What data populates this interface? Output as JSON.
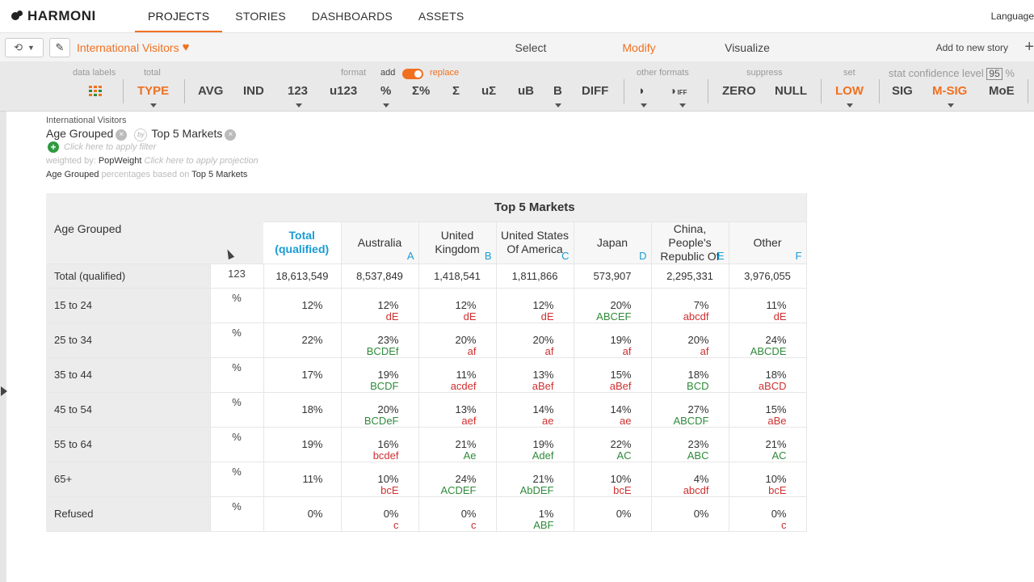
{
  "nav": {
    "brand": "HARMONI",
    "tabs": [
      "PROJECTS",
      "STORIES",
      "DASHBOARDS",
      "ASSETS"
    ],
    "active_tab": "PROJECTS",
    "language": "Language"
  },
  "subbar": {
    "story_title": "International Visitors",
    "modes": [
      "Select",
      "Modify",
      "Visualize"
    ],
    "active_mode": "Modify",
    "add_story": "Add to new story"
  },
  "toolbar": {
    "labels": {
      "data_labels": "data labels",
      "total": "total",
      "format": "format",
      "add": "add",
      "replace": "replace",
      "other_formats": "other formats",
      "suppress": "suppress",
      "set": "set",
      "stat_confidence": "stat confidence level",
      "confidence_value": "95",
      "percent_sign": "%"
    },
    "buttons": {
      "type": "TYPE",
      "avg": "AVG",
      "ind": "IND",
      "n123": "123",
      "u123": "u123",
      "pct": "%",
      "sigma_pct": "Σ%",
      "sigma": "Σ",
      "u_sigma": "uΣ",
      "ub": "uB",
      "b": "B",
      "diff": "DIFF",
      "diff_small": "IFF",
      "zero": "ZERO",
      "null": "NULL",
      "low": "LOW",
      "sig": "SIG",
      "msig": "M-SIG",
      "moe": "MoE"
    }
  },
  "meta": {
    "dataset": "International Visitors",
    "row_var": "Age Grouped",
    "by": "by",
    "col_var": "Top 5 Markets",
    "filter_hint": "Click here to apply filter",
    "weighted_by_label": "weighted by:",
    "weight": "PopWeight",
    "projection_hint": "Click here to apply projection",
    "pct_row": "Age Grouped",
    "pct_text": "percentages based on",
    "pct_col": "Top 5 Markets"
  },
  "table": {
    "banner": "Top 5 Markets",
    "row_var_label": "Age Grouped",
    "columns": [
      {
        "label": "Total (qualified)",
        "letter": ""
      },
      {
        "label": "Australia",
        "letter": "A"
      },
      {
        "label": "United Kingdom",
        "letter": "B"
      },
      {
        "label": "United States Of America",
        "letter": "C"
      },
      {
        "label": "Japan",
        "letter": "D"
      },
      {
        "label": "China, People's Republic Of",
        "letter": "E"
      },
      {
        "label": "Other",
        "letter": "F"
      }
    ],
    "rows": [
      {
        "label": "Total (qualified)",
        "stat": "123",
        "cells": [
          {
            "v": "18,613,549",
            "s": "",
            "t": ""
          },
          {
            "v": "8,537,849",
            "s": "",
            "t": ""
          },
          {
            "v": "1,418,541",
            "s": "",
            "t": ""
          },
          {
            "v": "1,811,866",
            "s": "",
            "t": ""
          },
          {
            "v": "573,907",
            "s": "",
            "t": ""
          },
          {
            "v": "2,295,331",
            "s": "",
            "t": ""
          },
          {
            "v": "3,976,055",
            "s": "",
            "t": ""
          }
        ]
      },
      {
        "label": "15 to 24",
        "stat": "%",
        "cells": [
          {
            "v": "12%",
            "s": "",
            "t": ""
          },
          {
            "v": "12%",
            "s": "dE",
            "t": "dn"
          },
          {
            "v": "12%",
            "s": "dE",
            "t": "dn"
          },
          {
            "v": "12%",
            "s": "dE",
            "t": "dn"
          },
          {
            "v": "20%",
            "s": "ABCEF",
            "t": "up"
          },
          {
            "v": "7%",
            "s": "abcdf",
            "t": "dn"
          },
          {
            "v": "11%",
            "s": "dE",
            "t": "dn"
          }
        ]
      },
      {
        "label": "25 to 34",
        "stat": "%",
        "cells": [
          {
            "v": "22%",
            "s": "",
            "t": ""
          },
          {
            "v": "23%",
            "s": "BCDEf",
            "t": "up"
          },
          {
            "v": "20%",
            "s": "af",
            "t": "dn"
          },
          {
            "v": "20%",
            "s": "af",
            "t": "dn"
          },
          {
            "v": "19%",
            "s": "af",
            "t": "dn"
          },
          {
            "v": "20%",
            "s": "af",
            "t": "dn"
          },
          {
            "v": "24%",
            "s": "ABCDE",
            "t": "up"
          }
        ]
      },
      {
        "label": "35 to 44",
        "stat": "%",
        "cells": [
          {
            "v": "17%",
            "s": "",
            "t": ""
          },
          {
            "v": "19%",
            "s": "BCDF",
            "t": "up"
          },
          {
            "v": "11%",
            "s": "acdef",
            "t": "dn"
          },
          {
            "v": "13%",
            "s": "aBef",
            "t": "dn"
          },
          {
            "v": "15%",
            "s": "aBef",
            "t": "dn"
          },
          {
            "v": "18%",
            "s": "BCD",
            "t": "up"
          },
          {
            "v": "18%",
            "s": "aBCD",
            "t": "dn"
          }
        ]
      },
      {
        "label": "45 to 54",
        "stat": "%",
        "cells": [
          {
            "v": "18%",
            "s": "",
            "t": ""
          },
          {
            "v": "20%",
            "s": "BCDeF",
            "t": "up"
          },
          {
            "v": "13%",
            "s": "aef",
            "t": "dn"
          },
          {
            "v": "14%",
            "s": "ae",
            "t": "dn"
          },
          {
            "v": "14%",
            "s": "ae",
            "t": "dn"
          },
          {
            "v": "27%",
            "s": "ABCDF",
            "t": "up"
          },
          {
            "v": "15%",
            "s": "aBe",
            "t": "dn"
          }
        ]
      },
      {
        "label": "55 to 64",
        "stat": "%",
        "cells": [
          {
            "v": "19%",
            "s": "",
            "t": ""
          },
          {
            "v": "16%",
            "s": "bcdef",
            "t": "dn"
          },
          {
            "v": "21%",
            "s": "Ae",
            "t": "up"
          },
          {
            "v": "19%",
            "s": "Adef",
            "t": "up"
          },
          {
            "v": "22%",
            "s": "AC",
            "t": "up"
          },
          {
            "v": "23%",
            "s": "ABC",
            "t": "up"
          },
          {
            "v": "21%",
            "s": "AC",
            "t": "up"
          }
        ]
      },
      {
        "label": "65+",
        "stat": "%",
        "cells": [
          {
            "v": "11%",
            "s": "",
            "t": ""
          },
          {
            "v": "10%",
            "s": "bcE",
            "t": "dn"
          },
          {
            "v": "24%",
            "s": "ACDEF",
            "t": "up"
          },
          {
            "v": "21%",
            "s": "AbDEF",
            "t": "up"
          },
          {
            "v": "10%",
            "s": "bcE",
            "t": "dn"
          },
          {
            "v": "4%",
            "s": "abcdf",
            "t": "dn"
          },
          {
            "v": "10%",
            "s": "bcE",
            "t": "dn"
          }
        ]
      },
      {
        "label": "Refused",
        "stat": "%",
        "cells": [
          {
            "v": "0%",
            "s": "",
            "t": ""
          },
          {
            "v": "0%",
            "s": "c",
            "t": "dn"
          },
          {
            "v": "0%",
            "s": "c",
            "t": "dn"
          },
          {
            "v": "1%",
            "s": "ABF",
            "t": "up"
          },
          {
            "v": "0%",
            "s": "",
            "t": ""
          },
          {
            "v": "0%",
            "s": "",
            "t": ""
          },
          {
            "v": "0%",
            "s": "c",
            "t": "dn"
          }
        ]
      }
    ]
  },
  "colors": {
    "accent": "#f07020",
    "sig_up": "#2f8a3a",
    "sig_down": "#d03030",
    "col_letter": "#1a9bd7"
  }
}
